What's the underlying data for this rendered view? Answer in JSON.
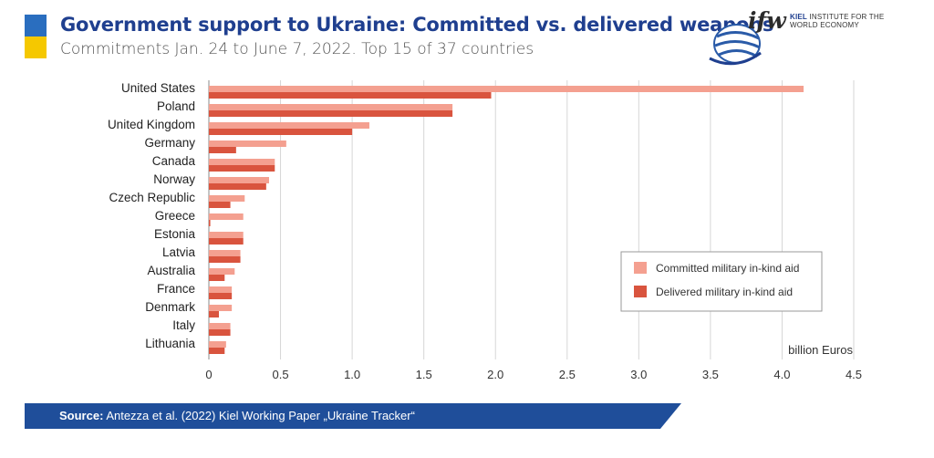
{
  "header": {
    "title": "Government support to Ukraine: Committed vs. delivered weapons",
    "subtitle": "Commitments Jan. 24 to June 7, 2022. Top 15 of 37 countries"
  },
  "logo": {
    "mark": "ifw",
    "institute_bold": "KIEL",
    "institute_text": "INSTITUTE FOR THE WORLD ECONOMY"
  },
  "footer": {
    "source_label": "Source:",
    "source_text": "Antezza et al. (2022) Kiel Working Paper „Ukraine Tracker“",
    "url": "ifw-kiel.de/ukrainetracker"
  },
  "colors": {
    "committed": "#f4a090",
    "delivered": "#d9543e",
    "title": "#1f3f8f",
    "flag_blue": "#2a6ebf",
    "flag_yellow": "#f5c800"
  },
  "chart_data": {
    "type": "bar",
    "orientation": "horizontal",
    "title": "Government support to Ukraine: Committed vs. delivered weapons",
    "xlabel": "billion Euros",
    "ylabel": "",
    "xlim": [
      0,
      4.5
    ],
    "xticks": [
      0,
      0.5,
      1.0,
      1.5,
      2.0,
      2.5,
      3.0,
      3.5,
      4.0,
      4.5
    ],
    "xtick_labels": [
      "0",
      "0.5",
      "1.0",
      "1.5",
      "2.0",
      "2.5",
      "3.0",
      "3.5",
      "4.0",
      "4.5"
    ],
    "grid": "vertical",
    "legend_position": "lower-right",
    "categories": [
      "United States",
      "Poland",
      "United Kingdom",
      "Germany",
      "Canada",
      "Norway",
      "Czech Republic",
      "Greece",
      "Estonia",
      "Latvia",
      "Australia",
      "France",
      "Denmark",
      "Italy",
      "Lithuania"
    ],
    "series": [
      {
        "name": "Committed military in-kind aid",
        "color": "#f4a090",
        "values": [
          4.15,
          1.7,
          1.12,
          0.54,
          0.46,
          0.42,
          0.25,
          0.24,
          0.24,
          0.22,
          0.18,
          0.16,
          0.16,
          0.15,
          0.12
        ]
      },
      {
        "name": "Delivered military in-kind aid",
        "color": "#d9543e",
        "values": [
          1.97,
          1.7,
          1.0,
          0.19,
          0.46,
          0.4,
          0.15,
          0.01,
          0.24,
          0.22,
          0.11,
          0.16,
          0.07,
          0.15,
          0.11
        ]
      }
    ]
  }
}
